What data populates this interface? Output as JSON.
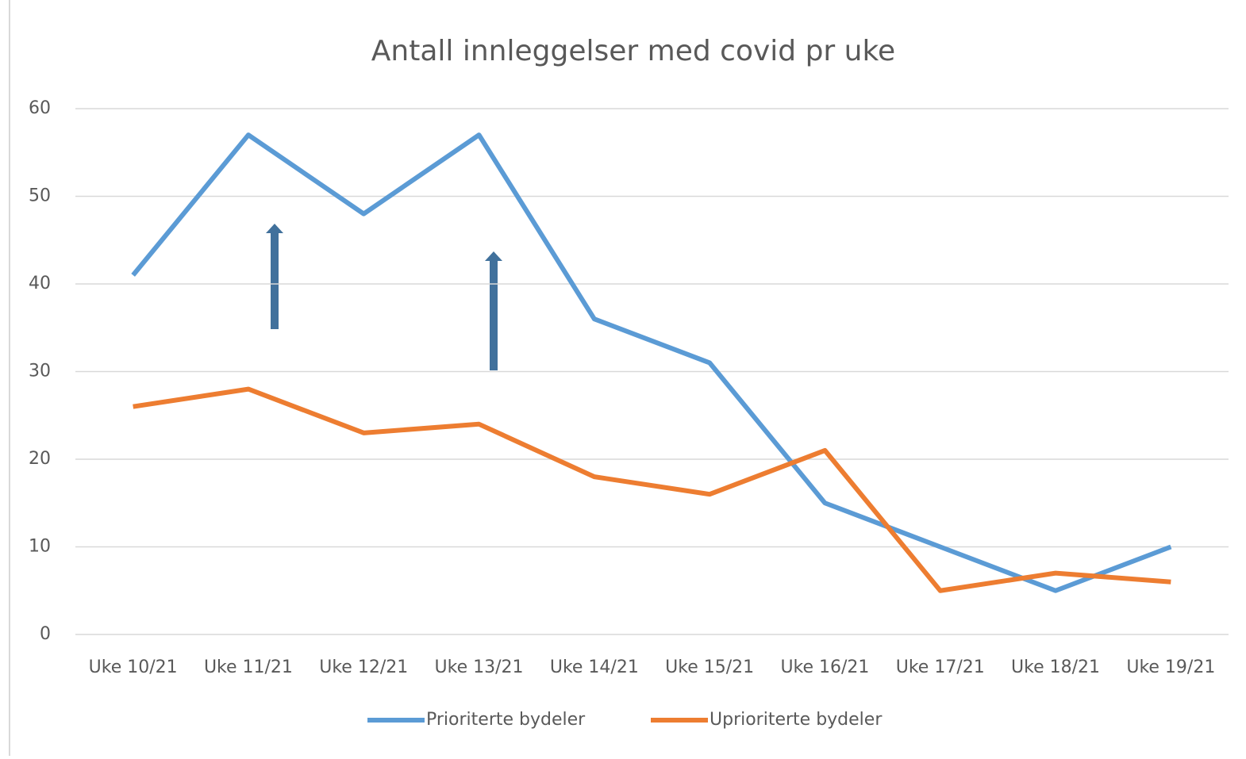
{
  "chart_data": {
    "type": "line",
    "title": "Antall innleggelser med covid pr uke",
    "categories": [
      "Uke 10/21",
      "Uke 11/21",
      "Uke 12/21",
      "Uke 13/21",
      "Uke 14/21",
      "Uke 15/21",
      "Uke 16/21",
      "Uke 17/21",
      "Uke 18/21",
      "Uke 19/21"
    ],
    "series": [
      {
        "name": "Prioriterte bydeler",
        "color": "#5b9bd5",
        "values": [
          41,
          57,
          48,
          57,
          36,
          31,
          15,
          10,
          5,
          10
        ]
      },
      {
        "name": "Uprioriterte bydeler",
        "color": "#ed7d31",
        "values": [
          26,
          28,
          23,
          24,
          18,
          16,
          21,
          5,
          7,
          6
        ]
      }
    ],
    "ylim": [
      0,
      60
    ],
    "yticks": [
      0,
      10,
      20,
      30,
      40,
      50,
      60
    ],
    "grid": true,
    "legend": "bottom"
  }
}
